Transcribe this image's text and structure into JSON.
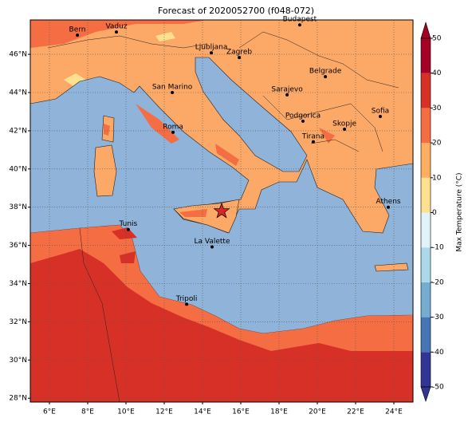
{
  "title": "Forecast of 2020052700 (f048-072)",
  "map": {
    "xlim": [
      5,
      25
    ],
    "ylim": [
      27.8,
      47.8
    ],
    "grid": true,
    "xticks": [
      {
        "value": 6,
        "label": "6°E"
      },
      {
        "value": 8,
        "label": "8°E"
      },
      {
        "value": 10,
        "label": "10°E"
      },
      {
        "value": 12,
        "label": "12°E"
      },
      {
        "value": 14,
        "label": "14°E"
      },
      {
        "value": 16,
        "label": "16°E"
      },
      {
        "value": 18,
        "label": "18°E"
      },
      {
        "value": 20,
        "label": "20°E"
      },
      {
        "value": 22,
        "label": "22°E"
      },
      {
        "value": 24,
        "label": "24°E"
      }
    ],
    "yticks": [
      {
        "value": 28,
        "label": "28°N"
      },
      {
        "value": 30,
        "label": "30°N"
      },
      {
        "value": 32,
        "label": "32°N"
      },
      {
        "value": 34,
        "label": "34°N"
      },
      {
        "value": 36,
        "label": "36°N"
      },
      {
        "value": 38,
        "label": "38°N"
      },
      {
        "value": 40,
        "label": "40°N"
      },
      {
        "value": 42,
        "label": "42°N"
      },
      {
        "value": 44,
        "label": "44°N"
      },
      {
        "value": 46,
        "label": "46°N"
      }
    ],
    "cities": [
      {
        "name": "Bern",
        "lon": 7.46,
        "lat": 47.0
      },
      {
        "name": "Vaduz",
        "lon": 9.5,
        "lat": 47.17
      },
      {
        "name": "Budapest",
        "lon": 19.08,
        "lat": 47.54
      },
      {
        "name": "Ljubljana",
        "lon": 14.46,
        "lat": 46.08
      },
      {
        "name": "Zagreb",
        "lon": 15.92,
        "lat": 45.83
      },
      {
        "name": "Belgrade",
        "lon": 20.42,
        "lat": 44.83
      },
      {
        "name": "San Marino",
        "lon": 12.42,
        "lat": 44.0
      },
      {
        "name": "Sarajevo",
        "lon": 18.42,
        "lat": 43.88
      },
      {
        "name": "Sofia",
        "lon": 23.29,
        "lat": 42.75
      },
      {
        "name": "Podgorica",
        "lon": 19.25,
        "lat": 42.5
      },
      {
        "name": "Skopje",
        "lon": 21.42,
        "lat": 42.08
      },
      {
        "name": "Roma",
        "lon": 12.46,
        "lat": 41.92
      },
      {
        "name": "Tirana",
        "lon": 19.79,
        "lat": 41.42
      },
      {
        "name": "Athens",
        "lon": 23.71,
        "lat": 38.0
      },
      {
        "name": "Tunis",
        "lon": 10.12,
        "lat": 36.83
      },
      {
        "name": "La Valette",
        "lon": 14.5,
        "lat": 35.92
      },
      {
        "name": "Tripoli",
        "lon": 13.17,
        "lat": 32.92
      }
    ],
    "star": {
      "lon": 15.0,
      "lat": 37.79,
      "color": "#d62728"
    }
  },
  "colorbar": {
    "label": "Max Temperature (°C)",
    "ticks": [
      -50,
      -40,
      -30,
      -20,
      -10,
      0,
      10,
      20,
      30,
      40,
      50
    ],
    "colors": [
      "#313695",
      "#4575b4",
      "#74add1",
      "#abd9e9",
      "#e0f3f8",
      "#fee090",
      "#fdae61",
      "#f46d43",
      "#d73027",
      "#a50026"
    ]
  }
}
